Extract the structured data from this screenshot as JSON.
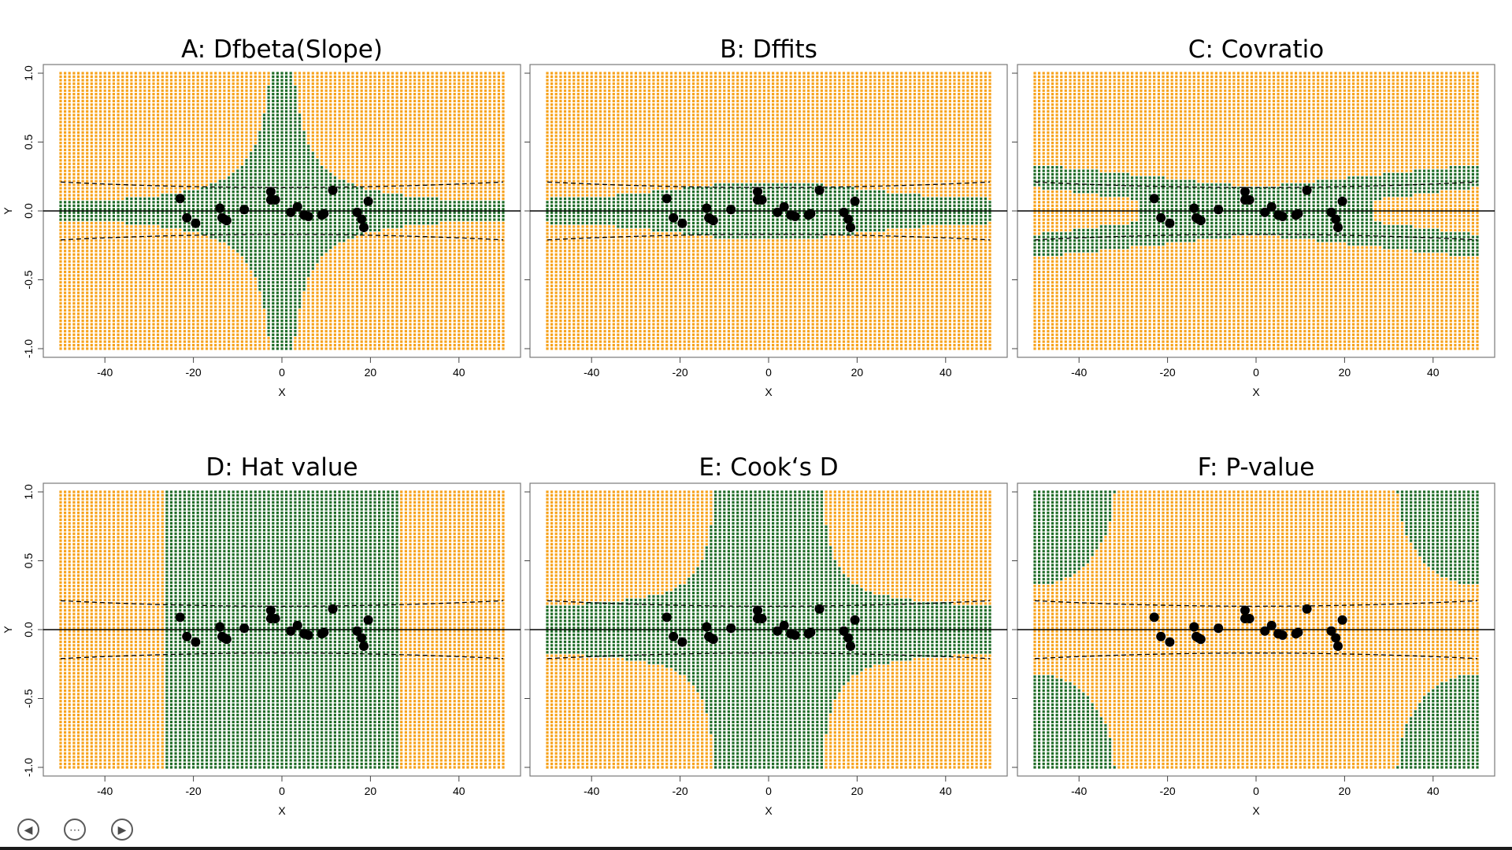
{
  "colors": {
    "influential": "#f7a21b",
    "not_influential": "#1e6b25",
    "point": "#000000"
  },
  "nav": {
    "prev_icon": "◀",
    "menu_icon": "⋯",
    "next_icon": "▶"
  },
  "chart_data": [
    {
      "id": "A",
      "type": "scatter",
      "title": "A: Dfbeta(Slope)",
      "xlabel": "X",
      "ylabel": "Y",
      "xlim": [
        -50,
        50
      ],
      "ylim": [
        -1,
        1
      ],
      "x_ticks": [
        "-40",
        "-20",
        "0",
        "20",
        "40"
      ],
      "y_ticks": [
        "-1.0",
        "-0.5",
        "0.0",
        "0.5",
        "1.0"
      ],
      "region": "dfbeta",
      "grid": true
    },
    {
      "id": "B",
      "type": "scatter",
      "title": "B: Dffits",
      "xlabel": "X",
      "ylabel": "",
      "xlim": [
        -50,
        50
      ],
      "ylim": [
        -1,
        1
      ],
      "x_ticks": [
        "-40",
        "-20",
        "0",
        "20",
        "40"
      ],
      "y_ticks": [],
      "region": "dffits",
      "grid": true
    },
    {
      "id": "C",
      "type": "scatter",
      "title": "C: Covratio",
      "xlabel": "X",
      "ylabel": "",
      "xlim": [
        -50,
        50
      ],
      "ylim": [
        -1,
        1
      ],
      "x_ticks": [
        "-40",
        "-20",
        "0",
        "20",
        "40"
      ],
      "y_ticks": [],
      "region": "covratio",
      "grid": true
    },
    {
      "id": "D",
      "type": "scatter",
      "title": "D: Hat value",
      "xlabel": "X",
      "ylabel": "Y",
      "xlim": [
        -50,
        50
      ],
      "ylim": [
        -1,
        1
      ],
      "x_ticks": [
        "-40",
        "-20",
        "0",
        "20",
        "40"
      ],
      "y_ticks": [
        "-1.0",
        "-0.5",
        "0.0",
        "0.5",
        "1.0"
      ],
      "region": "hat",
      "grid": true
    },
    {
      "id": "E",
      "type": "scatter",
      "title": "E: Cook‘s D",
      "xlabel": "X",
      "ylabel": "",
      "xlim": [
        -50,
        50
      ],
      "ylim": [
        -1,
        1
      ],
      "x_ticks": [
        "-40",
        "-20",
        "0",
        "20",
        "40"
      ],
      "y_ticks": [],
      "region": "cook",
      "grid": true
    },
    {
      "id": "F",
      "type": "scatter",
      "title": "F: P-value",
      "xlabel": "X",
      "ylabel": "",
      "xlim": [
        -50,
        50
      ],
      "ylim": [
        -1,
        1
      ],
      "x_ticks": [
        "-40",
        "-20",
        "0",
        "20",
        "40"
      ],
      "y_ticks": [],
      "region": "pvalue",
      "grid": true
    }
  ],
  "observed_points": {
    "x": [
      -23,
      -21.5,
      -19.5,
      -14,
      -13.5,
      -13,
      -12.5,
      -8.5,
      -2.5,
      -2.5,
      -1.5,
      2,
      3.5,
      5,
      6,
      9,
      9.5,
      11.5,
      17,
      18,
      18.5,
      19.5
    ],
    "y": [
      0.09,
      -0.05,
      -0.09,
      0.02,
      -0.05,
      -0.06,
      -0.07,
      0.01,
      0.14,
      0.08,
      0.08,
      -0.01,
      0.03,
      -0.03,
      -0.04,
      -0.03,
      -0.02,
      0.15,
      -0.01,
      -0.06,
      -0.12,
      0.07
    ]
  },
  "fit_line": {
    "intercept": 0,
    "slope": 0
  },
  "confidence_band": {
    "half_width_center": 0.17,
    "half_width_edge": 0.21
  }
}
